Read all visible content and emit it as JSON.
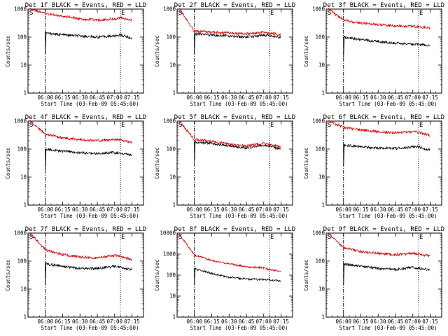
{
  "figure": {
    "title_suffix": "BLACK = Events, RED = LLD",
    "ylabel": "Counts/sec",
    "xlabel": "Start Time (03-Feb-09 05:45:00)",
    "start_marker": "S",
    "end_marker": "E",
    "colors": {
      "events": "#000000",
      "lld": "#e00000"
    }
  },
  "chart_data": [
    {
      "type": "line",
      "title": "Det 1f BLACK = Events, RED = LLD",
      "xlabel": "Start Time (03-Feb-09 05:45:00)",
      "ylabel": "Counts/sec",
      "x_ticks": [
        "06:00",
        "06:15",
        "06:30",
        "06:45",
        "07:00",
        "07:15"
      ],
      "y_ticks": [
        "1",
        "10",
        "100",
        "1000"
      ],
      "ylim": [
        1,
        1000
      ],
      "yscale": "log",
      "start_line": "06:00",
      "end_line": "07:05",
      "series": [
        {
          "name": "Events",
          "color": "#000000",
          "x": [
            "06:00",
            "06:15",
            "06:30",
            "06:45",
            "07:00",
            "07:05",
            "07:15"
          ],
          "y": [
            140,
            120,
            110,
            100,
            110,
            120,
            90
          ]
        },
        {
          "name": "LLD",
          "color": "#e00000",
          "x": [
            "05:47",
            "06:00",
            "06:15",
            "06:30",
            "06:45",
            "07:00",
            "07:05",
            "07:15"
          ],
          "y": [
            1000,
            700,
            550,
            450,
            400,
            450,
            500,
            400
          ]
        }
      ]
    },
    {
      "type": "line",
      "title": "Det 2f BLACK = Events, RED = LLD",
      "xlabel": "Start Time (03-Feb-09 05:45:00)",
      "ylabel": "Counts/sec",
      "x_ticks": [
        "06:00",
        "06:15",
        "06:30",
        "06:45",
        "07:00",
        "07:15"
      ],
      "y_ticks": [
        "1",
        "10",
        "100",
        "1000"
      ],
      "ylim": [
        1,
        1000
      ],
      "yscale": "log",
      "start_line": "06:00",
      "end_line": "07:05",
      "series": [
        {
          "name": "Events",
          "color": "#000000",
          "x": [
            "06:00",
            "06:15",
            "06:30",
            "06:45",
            "07:00",
            "07:05",
            "07:15"
          ],
          "y": [
            130,
            120,
            110,
            100,
            115,
            110,
            100
          ]
        },
        {
          "name": "LLD",
          "color": "#e00000",
          "x": [
            "05:47",
            "06:00",
            "06:15",
            "06:30",
            "06:45",
            "07:00",
            "07:05",
            "07:15"
          ],
          "y": [
            1000,
            160,
            150,
            140,
            130,
            150,
            140,
            120
          ]
        }
      ]
    },
    {
      "type": "line",
      "title": "Det 3f BLACK = Events, RED = LLD",
      "xlabel": "Start Time (03-Feb-09 05:45:00)",
      "ylabel": "Counts/sec",
      "x_ticks": [
        "06:00",
        "06:15",
        "06:30",
        "06:45",
        "07:00",
        "07:15"
      ],
      "y_ticks": [
        "1",
        "10",
        "100",
        "1000"
      ],
      "ylim": [
        1,
        1000
      ],
      "yscale": "log",
      "start_line": "06:00",
      "end_line": "07:05",
      "series": [
        {
          "name": "Events",
          "color": "#000000",
          "x": [
            "06:00",
            "06:15",
            "06:30",
            "06:45",
            "07:00",
            "07:05",
            "07:15"
          ],
          "y": [
            100,
            80,
            70,
            60,
            55,
            55,
            50
          ]
        },
        {
          "name": "LLD",
          "color": "#e00000",
          "x": [
            "05:47",
            "06:00",
            "06:15",
            "06:30",
            "06:45",
            "07:00",
            "07:05",
            "07:15"
          ],
          "y": [
            1000,
            400,
            320,
            280,
            250,
            240,
            230,
            210
          ]
        }
      ]
    },
    {
      "type": "line",
      "title": "Det 4f BLACK = Events, RED = LLD",
      "xlabel": "Start Time (03-Feb-09 05:45:00)",
      "ylabel": "Counts/sec",
      "x_ticks": [
        "06:00",
        "06:15",
        "06:30",
        "06:45",
        "07:00",
        "07:15"
      ],
      "y_ticks": [
        "1",
        "10",
        "100",
        "1000"
      ],
      "ylim": [
        1,
        1000
      ],
      "yscale": "log",
      "start_line": "06:00",
      "end_line": "07:05",
      "series": [
        {
          "name": "Events",
          "color": "#000000",
          "x": [
            "06:00",
            "06:15",
            "06:30",
            "06:45",
            "07:00",
            "07:05",
            "07:15"
          ],
          "y": [
            100,
            85,
            75,
            70,
            75,
            70,
            60
          ]
        },
        {
          "name": "LLD",
          "color": "#e00000",
          "x": [
            "05:47",
            "06:00",
            "06:15",
            "06:30",
            "06:45",
            "07:00",
            "07:05",
            "07:15"
          ],
          "y": [
            1000,
            350,
            250,
            220,
            200,
            220,
            210,
            170
          ]
        }
      ]
    },
    {
      "type": "line",
      "title": "Det 5f BLACK = Events, RED = LLD",
      "xlabel": "Start Time (03-Feb-09 05:45:00)",
      "ylabel": "Counts/sec",
      "x_ticks": [
        "06:00",
        "06:15",
        "06:30",
        "06:45",
        "07:00",
        "07:15"
      ],
      "y_ticks": [
        "1",
        "10",
        "100",
        "1000"
      ],
      "ylim": [
        1,
        1000
      ],
      "yscale": "log",
      "start_line": "06:00",
      "end_line": "07:05",
      "series": [
        {
          "name": "Events",
          "color": "#000000",
          "x": [
            "06:00",
            "06:15",
            "06:30",
            "06:45",
            "07:00",
            "07:05",
            "07:15"
          ],
          "y": [
            180,
            160,
            130,
            110,
            140,
            130,
            100
          ]
        },
        {
          "name": "LLD",
          "color": "#e00000",
          "x": [
            "05:47",
            "06:00",
            "06:15",
            "06:30",
            "06:45",
            "07:00",
            "07:05",
            "07:15"
          ],
          "y": [
            1000,
            220,
            190,
            150,
            130,
            160,
            150,
            120
          ]
        }
      ]
    },
    {
      "type": "line",
      "title": "Det 6f BLACK = Events, RED = LLD",
      "xlabel": "Start Time (03-Feb-09 05:45:00)",
      "ylabel": "Counts/sec",
      "x_ticks": [
        "06:00",
        "06:15",
        "06:30",
        "06:45",
        "07:00",
        "07:15"
      ],
      "y_ticks": [
        "1",
        "10",
        "100",
        "1000"
      ],
      "ylim": [
        1,
        1000
      ],
      "yscale": "log",
      "start_line": "06:00",
      "end_line": "07:05",
      "series": [
        {
          "name": "Events",
          "color": "#000000",
          "x": [
            "06:00",
            "06:15",
            "06:30",
            "06:45",
            "07:00",
            "07:05",
            "07:15"
          ],
          "y": [
            140,
            120,
            110,
            105,
            120,
            120,
            90
          ]
        },
        {
          "name": "LLD",
          "color": "#e00000",
          "x": [
            "05:47",
            "06:00",
            "06:15",
            "06:30",
            "06:45",
            "07:00",
            "07:05",
            "07:15"
          ],
          "y": [
            1000,
            600,
            480,
            420,
            380,
            420,
            400,
            300
          ]
        }
      ]
    },
    {
      "type": "line",
      "title": "Det 7f BLACK = Events, RED = LLD",
      "xlabel": "Start Time (03-Feb-09 05:45:00)",
      "ylabel": "Counts/sec",
      "x_ticks": [
        "06:00",
        "06:15",
        "06:30",
        "06:45",
        "07:00",
        "07:15"
      ],
      "y_ticks": [
        "1",
        "10",
        "100",
        "1000"
      ],
      "ylim": [
        1,
        1000
      ],
      "yscale": "log",
      "start_line": "06:00",
      "end_line": "07:05",
      "series": [
        {
          "name": "Events",
          "color": "#000000",
          "x": [
            "06:00",
            "06:15",
            "06:30",
            "06:45",
            "07:00",
            "07:05",
            "07:15"
          ],
          "y": [
            80,
            65,
            55,
            55,
            65,
            60,
            50
          ]
        },
        {
          "name": "LLD",
          "color": "#e00000",
          "x": [
            "05:47",
            "06:00",
            "06:15",
            "06:30",
            "06:45",
            "07:00",
            "07:05",
            "07:15"
          ],
          "y": [
            1000,
            250,
            170,
            140,
            130,
            160,
            150,
            110
          ]
        }
      ]
    },
    {
      "type": "line",
      "title": "Det 8f BLACK = Events, RED = LLD",
      "xlabel": "Start Time (03-Feb-09 05:45:00)",
      "ylabel": "Counts/sec",
      "x_ticks": [
        "06:00",
        "06:15",
        "06:30",
        "06:45",
        "07:00",
        "07:15"
      ],
      "y_ticks": [
        "1",
        "10",
        "100",
        "1000",
        "10000"
      ],
      "ylim": [
        1,
        10000
      ],
      "yscale": "log",
      "start_line": "06:00",
      "end_line": "07:05",
      "series": [
        {
          "name": "Events",
          "color": "#000000",
          "x": [
            "06:00",
            "06:15",
            "06:30",
            "06:45",
            "07:00",
            "07:05",
            "07:15"
          ],
          "y": [
            200,
            120,
            80,
            65,
            60,
            60,
            50
          ]
        },
        {
          "name": "LLD",
          "color": "#e00000",
          "x": [
            "05:47",
            "06:00",
            "06:15",
            "06:30",
            "06:45",
            "07:00",
            "07:05",
            "07:15"
          ],
          "y": [
            9000,
            900,
            500,
            350,
            250,
            220,
            180,
            150
          ]
        }
      ]
    },
    {
      "type": "line",
      "title": "Det 9f BLACK = Events, RED = LLD",
      "xlabel": "Start Time (03-Feb-09 05:45:00)",
      "ylabel": "Counts/sec",
      "x_ticks": [
        "06:00",
        "06:15",
        "06:30",
        "06:45",
        "07:00",
        "07:15"
      ],
      "y_ticks": [
        "1",
        "10",
        "100",
        "1000"
      ],
      "ylim": [
        1,
        1000
      ],
      "yscale": "log",
      "start_line": "06:00",
      "end_line": "07:05",
      "series": [
        {
          "name": "Events",
          "color": "#000000",
          "x": [
            "06:00",
            "06:15",
            "06:30",
            "06:45",
            "07:00",
            "07:05",
            "07:15"
          ],
          "y": [
            80,
            65,
            55,
            50,
            60,
            55,
            50
          ]
        },
        {
          "name": "LLD",
          "color": "#e00000",
          "x": [
            "05:47",
            "06:00",
            "06:15",
            "06:30",
            "06:45",
            "07:00",
            "07:05",
            "07:15"
          ],
          "y": [
            1000,
            300,
            220,
            190,
            170,
            190,
            180,
            150
          ]
        }
      ]
    }
  ]
}
